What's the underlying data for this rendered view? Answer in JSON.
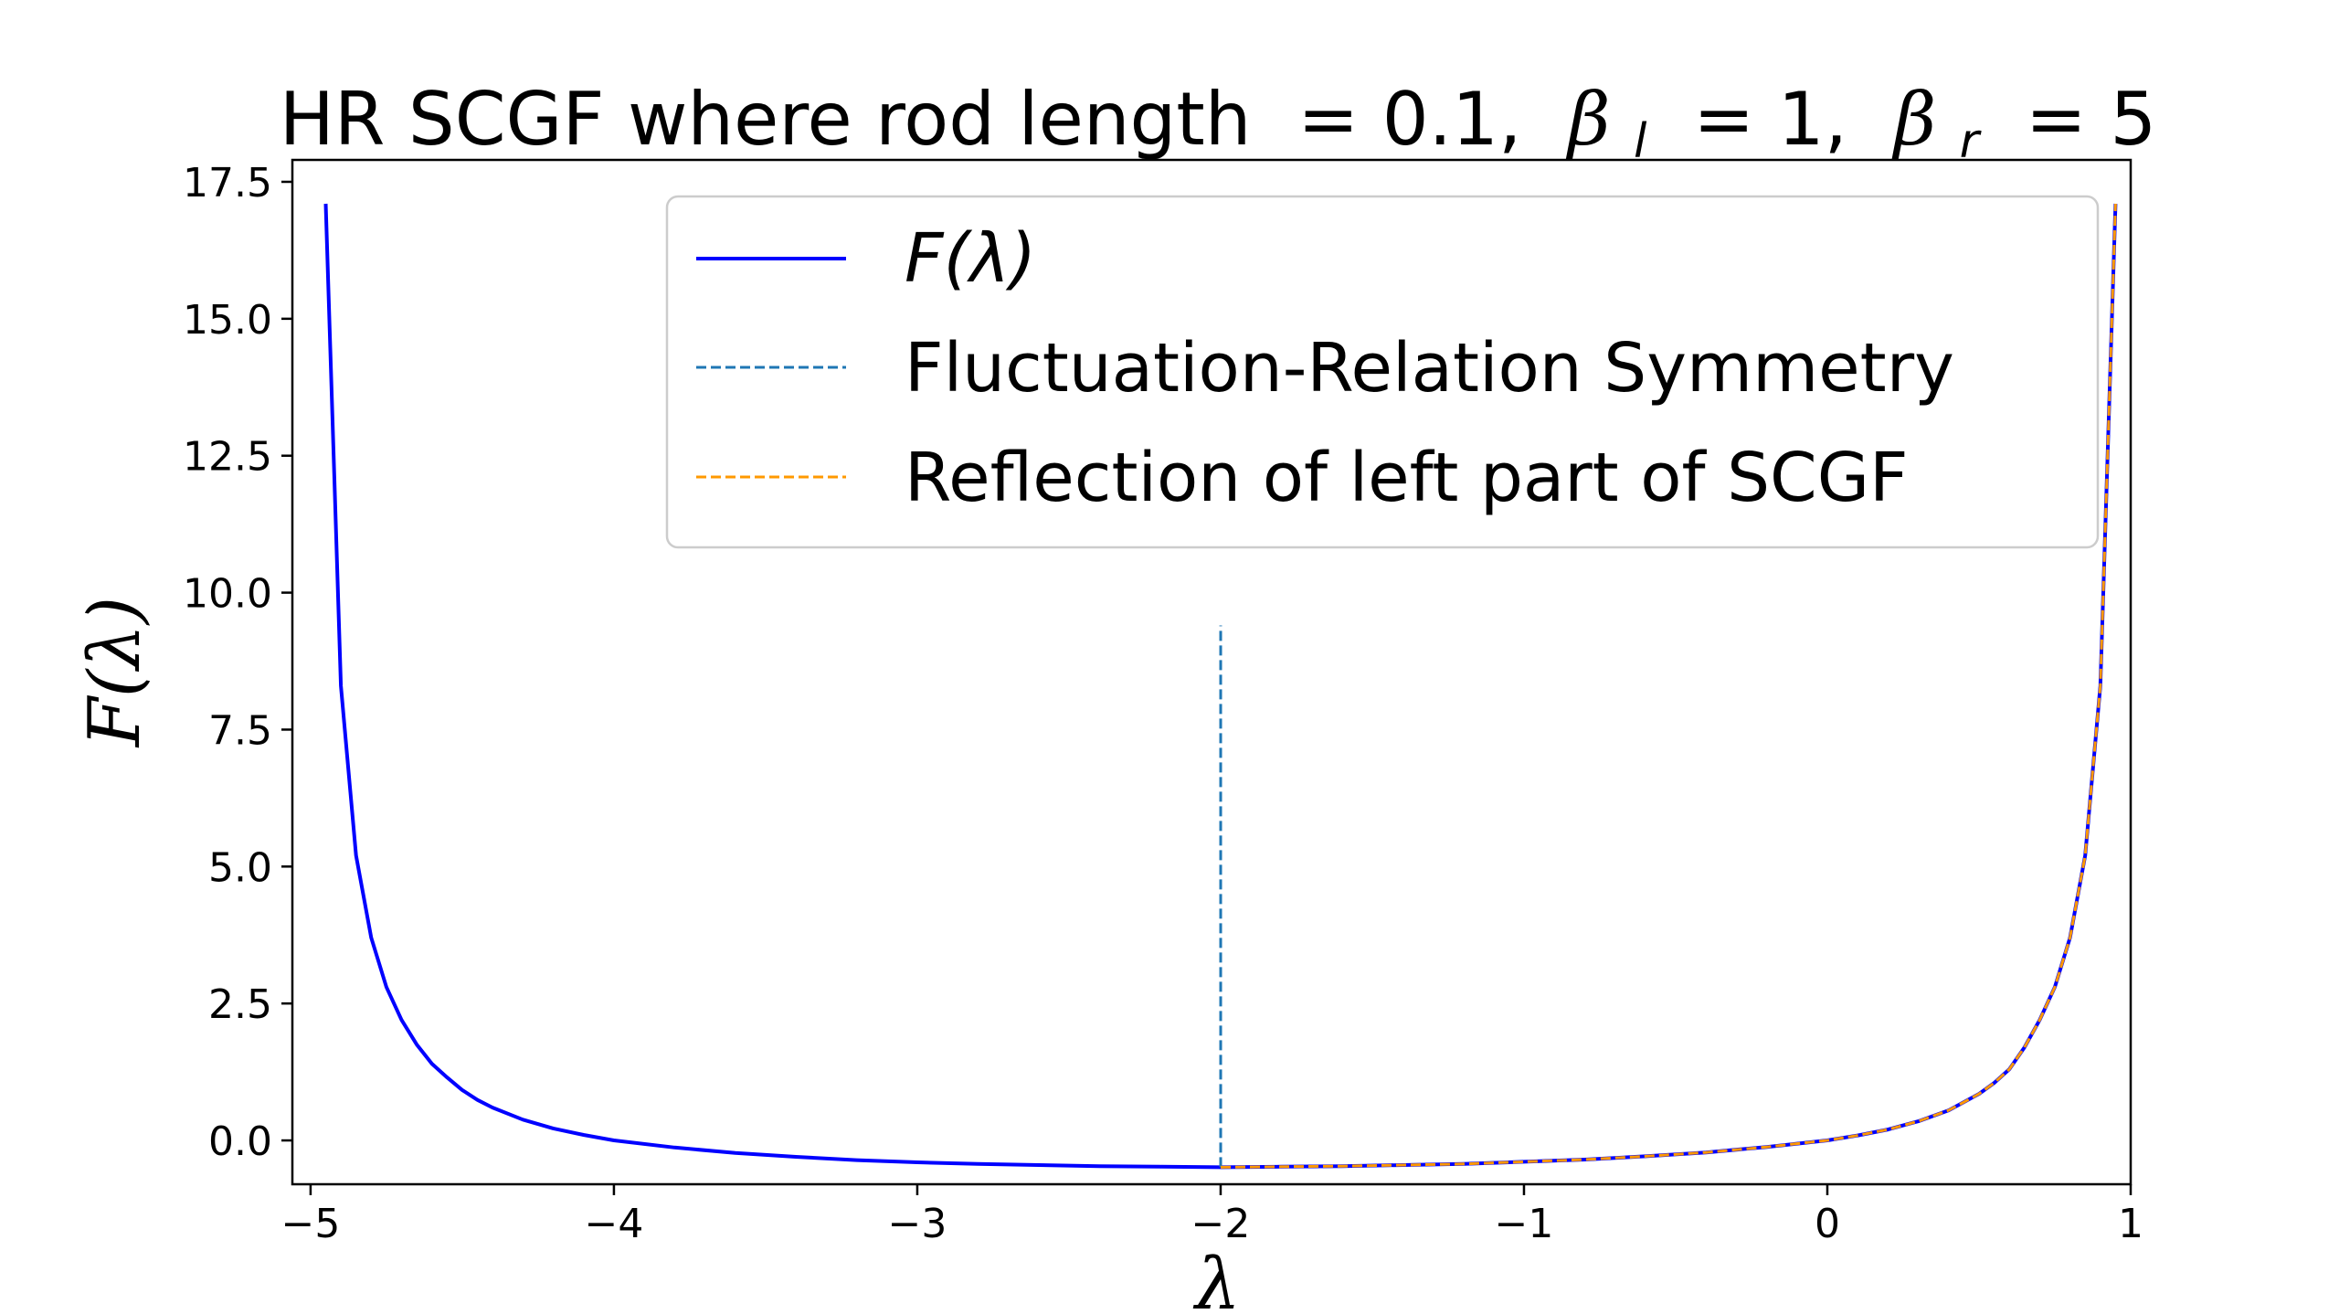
{
  "chart_data": {
    "type": "line",
    "title": "HR SCGF where rod length = 0.1, β_l = 1, β_r = 5",
    "title_parts": {
      "prefix": "HR SCGF where rod length",
      "eq1": " = 0.1, ",
      "beta": "β",
      "sub_l": "l",
      "sub_r": "r",
      "eq2": " = 1, ",
      "eq3": " = 5"
    },
    "xlabel": "λ",
    "ylabel": "F(λ)",
    "xlim": [
      -5.06,
      1.0
    ],
    "ylim": [
      -0.8,
      17.9
    ],
    "xticks": [
      -5,
      -4,
      -3,
      -2,
      -1,
      0,
      1
    ],
    "xtick_labels": [
      "−5",
      "−4",
      "−3",
      "−2",
      "−1",
      "0",
      "1"
    ],
    "yticks": [
      0.0,
      2.5,
      5.0,
      7.5,
      10.0,
      12.5,
      15.0,
      17.5
    ],
    "ytick_labels": [
      "0.0",
      "2.5",
      "5.0",
      "7.5",
      "10.0",
      "12.5",
      "15.0",
      "17.5"
    ],
    "grid": false,
    "legend_position": "top-right",
    "series": [
      {
        "name": "F(λ)",
        "color": "#0000ff",
        "style": "solid",
        "x": [
          -4.95,
          -4.9,
          -4.85,
          -4.8,
          -4.75,
          -4.7,
          -4.65,
          -4.6,
          -4.55,
          -4.5,
          -4.45,
          -4.4,
          -4.3,
          -4.2,
          -4.1,
          -4.0,
          -3.8,
          -3.6,
          -3.4,
          -3.2,
          -3.0,
          -2.8,
          -2.6,
          -2.4,
          -2.2,
          -2.0,
          -1.8,
          -1.6,
          -1.4,
          -1.2,
          -1.0,
          -0.8,
          -0.6,
          -0.4,
          -0.2,
          0.0,
          0.1,
          0.2,
          0.3,
          0.4,
          0.5,
          0.55,
          0.6,
          0.65,
          0.7,
          0.75,
          0.8,
          0.85,
          0.9,
          0.95
        ],
        "y": [
          17.1,
          8.3,
          5.2,
          3.7,
          2.8,
          2.2,
          1.75,
          1.4,
          1.15,
          0.92,
          0.74,
          0.6,
          0.38,
          0.22,
          0.1,
          0.0,
          -0.13,
          -0.23,
          -0.3,
          -0.36,
          -0.4,
          -0.43,
          -0.45,
          -0.47,
          -0.48,
          -0.49,
          -0.48,
          -0.47,
          -0.45,
          -0.43,
          -0.39,
          -0.35,
          -0.29,
          -0.22,
          -0.12,
          0.0,
          0.09,
          0.2,
          0.35,
          0.55,
          0.85,
          1.05,
          1.3,
          1.7,
          2.2,
          2.8,
          3.7,
          5.2,
          8.3,
          17.1
        ]
      },
      {
        "name": "Fluctuation-Relation Symmetry",
        "color": "#1f77b4",
        "style": "dashed",
        "x": [
          -2.0,
          -2.0
        ],
        "y": [
          -0.49,
          9.4
        ]
      },
      {
        "name": "Reflection of left part of SCGF",
        "color": "#ff9900",
        "style": "dashed",
        "x": [
          -2.0,
          -1.8,
          -1.6,
          -1.4,
          -1.2,
          -1.0,
          -0.8,
          -0.6,
          -0.4,
          -0.2,
          0.0,
          0.1,
          0.2,
          0.3,
          0.4,
          0.5,
          0.55,
          0.6,
          0.65,
          0.7,
          0.75,
          0.8,
          0.85,
          0.9,
          0.95
        ],
        "y": [
          -0.49,
          -0.48,
          -0.47,
          -0.45,
          -0.43,
          -0.39,
          -0.35,
          -0.29,
          -0.22,
          -0.12,
          0.0,
          0.09,
          0.2,
          0.35,
          0.55,
          0.85,
          1.05,
          1.3,
          1.7,
          2.2,
          2.8,
          3.7,
          5.2,
          8.3,
          17.1
        ]
      }
    ]
  }
}
